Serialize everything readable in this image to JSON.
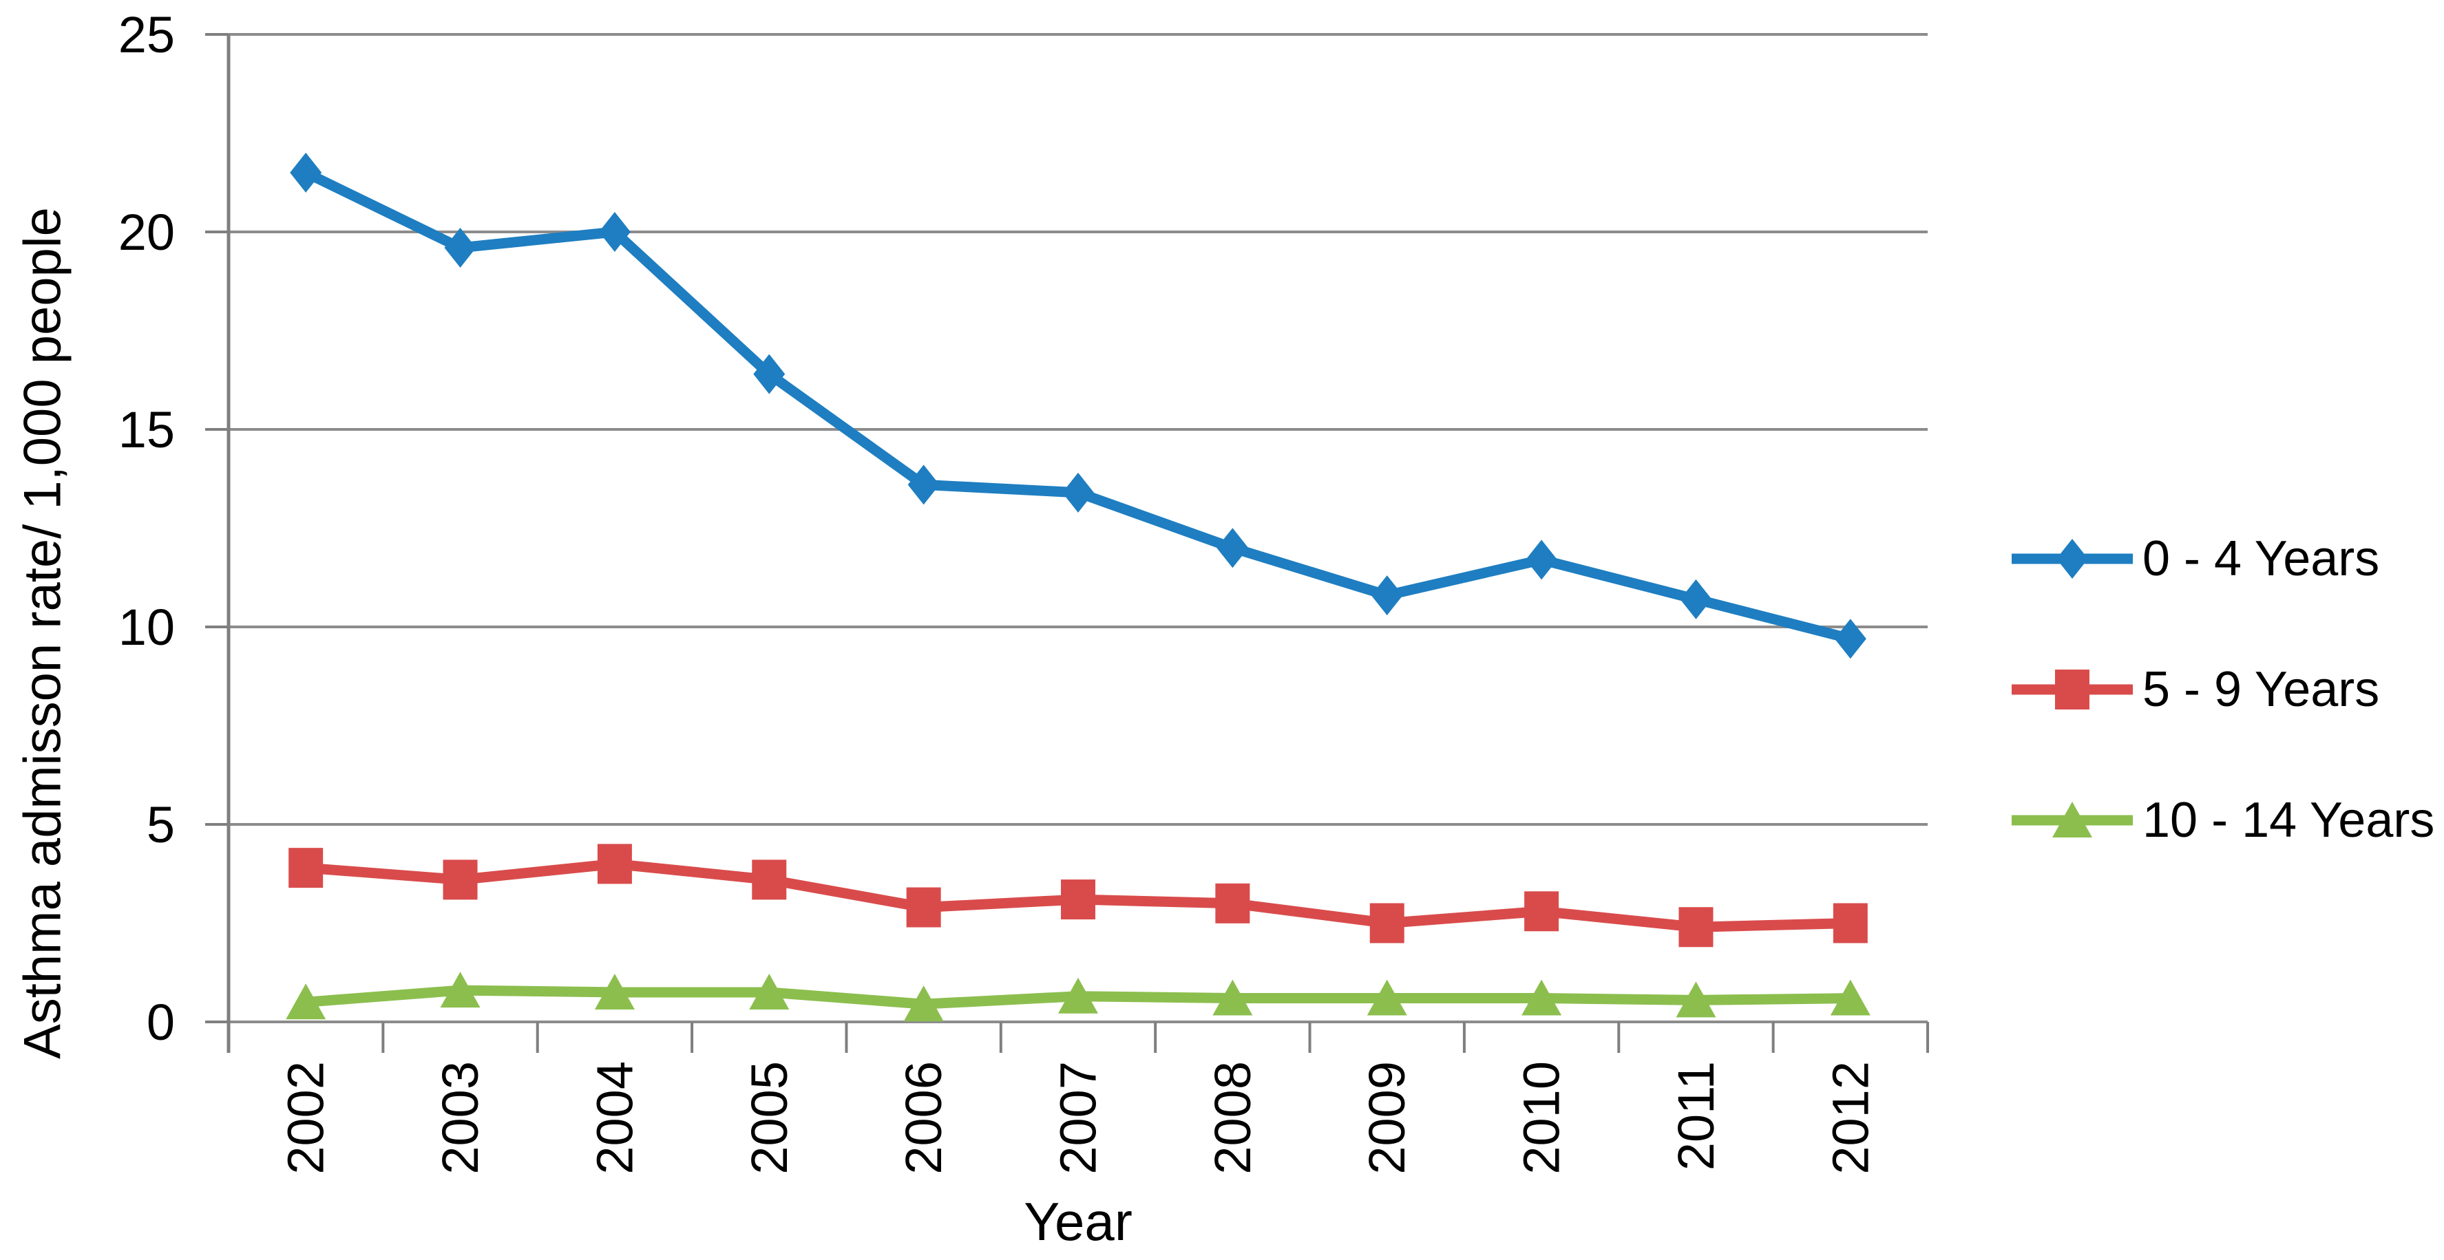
{
  "chart_data": {
    "type": "line",
    "title": "",
    "xlabel": "Year",
    "ylabel": "Asthma admisson rate/ 1,000 people",
    "categories": [
      "2002",
      "2003",
      "2004",
      "2005",
      "2006",
      "2007",
      "2008",
      "2009",
      "2010",
      "2011",
      "2012"
    ],
    "y_ticks": [
      0,
      5,
      10,
      15,
      20,
      25
    ],
    "y_tick_labels": [
      "0",
      "5",
      "10",
      "15",
      "20",
      "25"
    ],
    "ylim": [
      0,
      25
    ],
    "grid": true,
    "legend_position": "right",
    "series": [
      {
        "name": "0 - 4 Years",
        "marker": "diamond",
        "color": "#1E7EC1",
        "values": [
          21.5,
          19.6,
          20.0,
          16.4,
          13.6,
          13.4,
          12.0,
          10.8,
          11.7,
          10.7,
          9.7
        ]
      },
      {
        "name": "5 - 9 Years",
        "marker": "square",
        "color": "#D94B4B",
        "values": [
          3.9,
          3.6,
          4.0,
          3.6,
          2.9,
          3.1,
          3.0,
          2.5,
          2.8,
          2.4,
          2.5
        ]
      },
      {
        "name": "10 - 14 Years",
        "marker": "triangle",
        "color": "#8CBE4E",
        "values": [
          0.5,
          0.8,
          0.75,
          0.75,
          0.45,
          0.65,
          0.6,
          0.6,
          0.6,
          0.55,
          0.6
        ]
      }
    ],
    "colors": {
      "gridline": "#8C8C8C",
      "axis": "#7F7F7F",
      "text": "#000000",
      "background": "#FFFFFF"
    }
  }
}
